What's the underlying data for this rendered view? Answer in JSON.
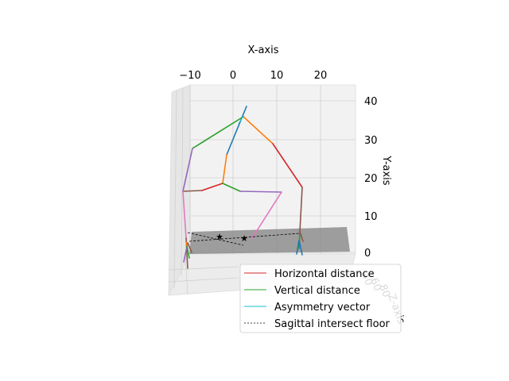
{
  "chart_data": {
    "type": "3d-line",
    "axes": {
      "x": {
        "label": "X-axis",
        "ticks": [
          "−10",
          "0",
          "10",
          "20"
        ]
      },
      "y": {
        "label": "Y-axis",
        "ticks": [
          "0",
          "10",
          "20",
          "30",
          "40"
        ]
      },
      "z": {
        "label": "Z-axis",
        "ticks": [
          "40",
          "60",
          "80"
        ]
      }
    },
    "legend": {
      "placement": "lower-right",
      "entries": [
        {
          "label": "Horizontal distance",
          "color": "#d62728",
          "style": "solid"
        },
        {
          "label": "Vertical distance",
          "color": "#2ca02c",
          "style": "solid"
        },
        {
          "label": "Asymmetry vector",
          "color": "#17becf",
          "style": "solid"
        },
        {
          "label": "Sagittal intersect floor",
          "color": "#000000",
          "style": "dashed"
        }
      ]
    },
    "skeleton_colors": [
      "#1f77b4",
      "#ff7f0e",
      "#2ca02c",
      "#d62728",
      "#9467bd",
      "#8c564b",
      "#e377c2"
    ],
    "floor_color": "#808080",
    "grid": true
  }
}
